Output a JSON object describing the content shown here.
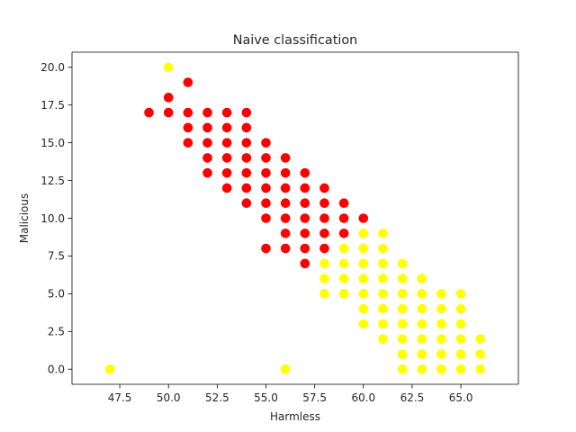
{
  "chart_data": {
    "type": "scatter",
    "title": "Naive classification",
    "xlabel": "Harmless",
    "ylabel": "Malicious",
    "xlim": [
      45.05,
      67.95
    ],
    "ylim": [
      -1.0,
      21.0
    ],
    "xticks": [
      47.5,
      50.0,
      52.5,
      55.0,
      57.5,
      60.0,
      62.5,
      65.0
    ],
    "yticks": [
      0.0,
      2.5,
      5.0,
      7.5,
      10.0,
      12.5,
      15.0,
      17.5,
      20.0
    ],
    "xtick_labels": [
      "47.5",
      "50.0",
      "52.5",
      "55.0",
      "57.5",
      "60.0",
      "62.5",
      "65.0"
    ],
    "ytick_labels": [
      "0.0",
      "2.5",
      "5.0",
      "7.5",
      "10.0",
      "12.5",
      "15.0",
      "17.5",
      "20.0"
    ],
    "grid": false,
    "series": [
      {
        "color": "#ff0000",
        "points": [
          [
            49,
            17
          ],
          [
            50,
            18
          ],
          [
            50,
            17
          ],
          [
            51,
            19
          ],
          [
            51,
            17
          ],
          [
            51,
            16
          ],
          [
            51,
            15
          ],
          [
            52,
            17
          ],
          [
            52,
            16
          ],
          [
            52,
            15
          ],
          [
            52,
            14
          ],
          [
            52,
            13
          ],
          [
            53,
            17
          ],
          [
            53,
            16
          ],
          [
            53,
            15
          ],
          [
            53,
            14
          ],
          [
            53,
            13
          ],
          [
            53,
            12
          ],
          [
            54,
            17
          ],
          [
            54,
            16
          ],
          [
            54,
            15
          ],
          [
            54,
            14
          ],
          [
            54,
            13
          ],
          [
            54,
            12
          ],
          [
            54,
            11
          ],
          [
            55,
            15
          ],
          [
            55,
            14
          ],
          [
            55,
            13
          ],
          [
            55,
            12
          ],
          [
            55,
            11
          ],
          [
            55,
            10
          ],
          [
            55,
            8
          ],
          [
            56,
            14
          ],
          [
            56,
            13
          ],
          [
            56,
            12
          ],
          [
            56,
            11
          ],
          [
            56,
            10
          ],
          [
            56,
            9
          ],
          [
            56,
            8
          ],
          [
            57,
            13
          ],
          [
            57,
            12
          ],
          [
            57,
            11
          ],
          [
            57,
            10
          ],
          [
            57,
            9
          ],
          [
            57,
            8
          ],
          [
            57,
            7
          ],
          [
            58,
            12
          ],
          [
            58,
            11
          ],
          [
            58,
            10
          ],
          [
            58,
            9
          ],
          [
            58,
            8
          ],
          [
            59,
            11
          ],
          [
            59,
            10
          ],
          [
            59,
            9
          ],
          [
            60,
            10
          ]
        ]
      },
      {
        "color": "#ffff00",
        "points": [
          [
            47,
            0
          ],
          [
            50,
            20
          ],
          [
            56,
            0
          ],
          [
            58,
            7
          ],
          [
            58,
            6
          ],
          [
            58,
            5
          ],
          [
            59,
            8
          ],
          [
            59,
            7
          ],
          [
            59,
            6
          ],
          [
            59,
            5
          ],
          [
            60,
            9
          ],
          [
            60,
            8
          ],
          [
            60,
            7
          ],
          [
            60,
            6
          ],
          [
            60,
            5
          ],
          [
            60,
            4
          ],
          [
            60,
            3
          ],
          [
            61,
            9
          ],
          [
            61,
            8
          ],
          [
            61,
            7
          ],
          [
            61,
            6
          ],
          [
            61,
            5
          ],
          [
            61,
            4
          ],
          [
            61,
            3
          ],
          [
            61,
            2
          ],
          [
            62,
            7
          ],
          [
            62,
            6
          ],
          [
            62,
            5
          ],
          [
            62,
            4
          ],
          [
            62,
            3
          ],
          [
            62,
            2
          ],
          [
            62,
            1
          ],
          [
            62,
            0
          ],
          [
            63,
            6
          ],
          [
            63,
            5
          ],
          [
            63,
            4
          ],
          [
            63,
            3
          ],
          [
            63,
            2
          ],
          [
            63,
            1
          ],
          [
            63,
            0
          ],
          [
            64,
            5
          ],
          [
            64,
            4
          ],
          [
            64,
            3
          ],
          [
            64,
            2
          ],
          [
            64,
            1
          ],
          [
            64,
            0
          ],
          [
            65,
            5
          ],
          [
            65,
            4
          ],
          [
            65,
            3
          ],
          [
            65,
            2
          ],
          [
            65,
            1
          ],
          [
            65,
            0
          ],
          [
            66,
            2
          ],
          [
            66,
            1
          ],
          [
            66,
            0
          ]
        ]
      }
    ]
  }
}
